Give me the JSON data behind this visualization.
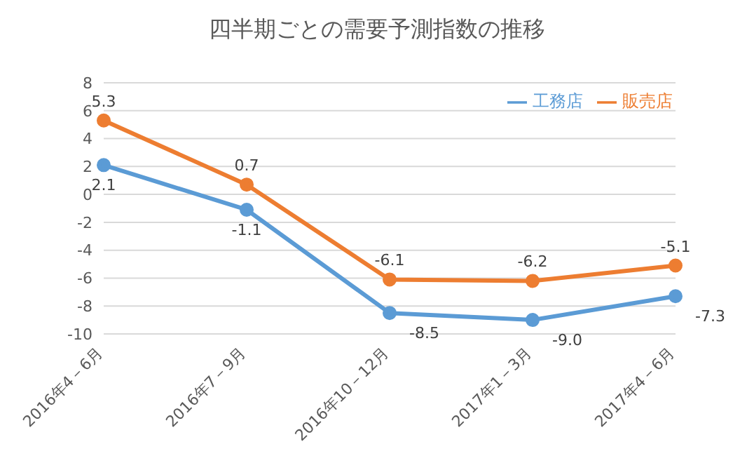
{
  "chart_data": {
    "type": "line",
    "title": "四半期ごとの需要予測指数の推移",
    "categories": [
      "2016年4－6月",
      "2016年7－9月",
      "2016年10－12月",
      "2017年1－3月",
      "2017年4－6月"
    ],
    "series": [
      {
        "name": "工務店",
        "color": "#5b9bd5",
        "values": [
          2.1,
          -1.1,
          -8.5,
          -9.0,
          -7.3
        ],
        "value_labels": [
          "2.1",
          "-1.1",
          "-8.5",
          "-9.0",
          "-7.3"
        ]
      },
      {
        "name": "販売店",
        "color": "#ed7d31",
        "values": [
          5.3,
          0.7,
          -6.1,
          -6.2,
          -5.1
        ],
        "value_labels": [
          "5.3",
          "0.7",
          "-6.1",
          "-6.2",
          "-5.1"
        ]
      }
    ],
    "ylim": [
      -10,
      8
    ],
    "yticks": [
      -10,
      -8,
      -6,
      -4,
      -2,
      0,
      2,
      4,
      6,
      8
    ],
    "grid": "y",
    "legend": "top right",
    "marker": "circle"
  }
}
